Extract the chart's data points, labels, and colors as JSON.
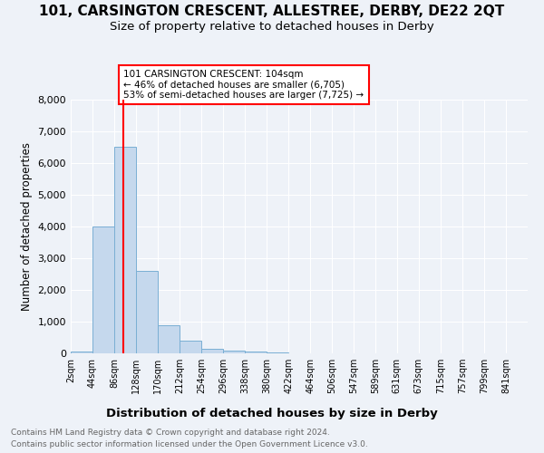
{
  "title": "101, CARSINGTON CRESCENT, ALLESTREE, DERBY, DE22 2QT",
  "subtitle": "Size of property relative to detached houses in Derby",
  "xlabel": "Distribution of detached houses by size in Derby",
  "ylabel": "Number of detached properties",
  "footnote1": "Contains HM Land Registry data © Crown copyright and database right 2024.",
  "footnote2": "Contains public sector information licensed under the Open Government Licence v3.0.",
  "annotation_line1": "101 CARSINGTON CRESCENT: 104sqm",
  "annotation_line2": "← 46% of detached houses are smaller (6,705)",
  "annotation_line3": "53% of semi-detached houses are larger (7,725) →",
  "bar_color": "#c5d8ed",
  "bar_edge_color": "#7aafd4",
  "red_line_x": 104,
  "categories": [
    "2sqm",
    "44sqm",
    "86sqm",
    "128sqm",
    "170sqm",
    "212sqm",
    "254sqm",
    "296sqm",
    "338sqm",
    "380sqm",
    "422sqm",
    "464sqm",
    "506sqm",
    "547sqm",
    "589sqm",
    "631sqm",
    "673sqm",
    "715sqm",
    "757sqm",
    "799sqm",
    "841sqm"
  ],
  "bin_edges": [
    2,
    44,
    86,
    128,
    170,
    212,
    254,
    296,
    338,
    380,
    422,
    464,
    506,
    547,
    589,
    631,
    673,
    715,
    757,
    799,
    841,
    883
  ],
  "values": [
    50,
    4000,
    6500,
    2600,
    900,
    400,
    150,
    80,
    50,
    30,
    10,
    0,
    0,
    0,
    0,
    0,
    0,
    0,
    0,
    0,
    0
  ],
  "ylim": [
    0,
    8000
  ],
  "yticks": [
    0,
    1000,
    2000,
    3000,
    4000,
    5000,
    6000,
    7000,
    8000
  ],
  "background_color": "#eef2f8",
  "plot_bg_color": "#eef2f8",
  "grid_color": "#ffffff",
  "title_fontsize": 11,
  "subtitle_fontsize": 9.5,
  "xlabel_fontsize": 9.5,
  "ylabel_fontsize": 8.5
}
